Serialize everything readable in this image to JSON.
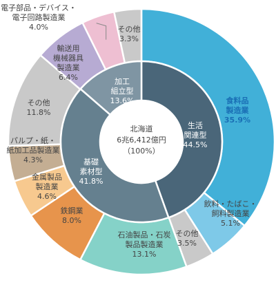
{
  "chart_data": {
    "type": "pie",
    "title": "",
    "center": {
      "line1": "北海道",
      "line2": "6兆6,412億円",
      "line3": "（100%）"
    },
    "inner": [
      {
        "lines": [
          "生活",
          "関連型"
        ],
        "value_label": "44.5%",
        "value": 44.5,
        "color": "#4a6679"
      },
      {
        "lines": [
          "基礎",
          "素材型"
        ],
        "value_label": "41.8%",
        "value": 41.8,
        "color": "#65808f"
      },
      {
        "lines": [
          "加工",
          "組立型"
        ],
        "value_label": "13.6%",
        "value": 13.6,
        "color": "#7f95a3"
      }
    ],
    "outer": [
      {
        "lines": [
          "食料品",
          "製造業"
        ],
        "value_label": "35.9%",
        "value": 35.9,
        "color": "#41b0d8"
      },
      {
        "lines": [
          "飲料・たばこ・",
          "飼料製造業"
        ],
        "value_label": "5.1%",
        "value": 5.1,
        "color": "#7ec9e8"
      },
      {
        "lines": [
          "その他"
        ],
        "value_label": "3.5%",
        "value": 3.5,
        "color": "#c9c9c9"
      },
      {
        "lines": [
          "石油製品・石炭",
          "製品製造業"
        ],
        "value_label": "13.1%",
        "value": 13.1,
        "color": "#85d2c8"
      },
      {
        "lines": [
          "鉄鋼業"
        ],
        "value_label": "8.0%",
        "value": 8.0,
        "color": "#e7944c"
      },
      {
        "lines": [
          "金属製品",
          "製造業"
        ],
        "value_label": "4.6%",
        "value": 4.6,
        "color": "#f7c98f"
      },
      {
        "lines": [
          "パルプ・紙・",
          "紙加工品製造業"
        ],
        "value_label": "4.3%",
        "value": 4.3,
        "color": "#c4ae93"
      },
      {
        "lines": [
          "その他"
        ],
        "value_label": "11.8%",
        "value": 11.8,
        "color": "#c9c9c9"
      },
      {
        "lines": [
          "輸送用",
          "機械器具",
          "製造業"
        ],
        "value_label": "6.4%",
        "value": 6.4,
        "color": "#b7abd3"
      },
      {
        "lines": [
          "電子部品・デバイス・",
          "電子回路製造業"
        ],
        "value_label": "4.0%",
        "value": 4.0,
        "color": "#eebfd2"
      },
      {
        "lines": [
          "その他"
        ],
        "value_label": "3.3%",
        "value": 3.3,
        "color": "#c9c9c9"
      }
    ]
  }
}
